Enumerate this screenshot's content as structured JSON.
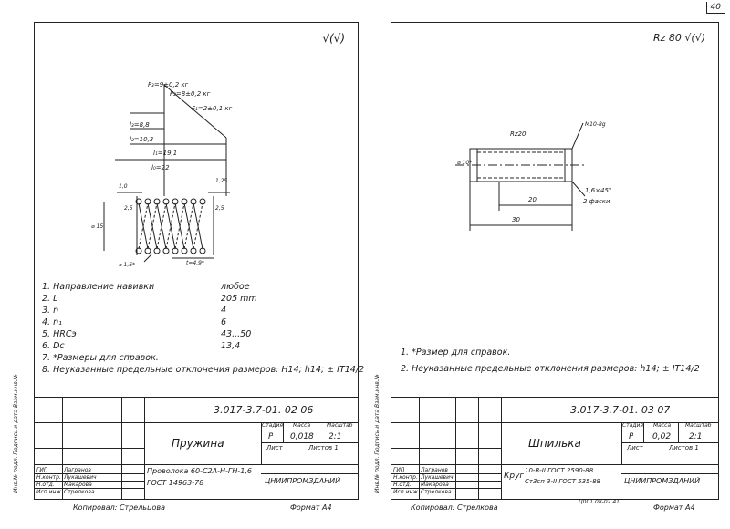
{
  "page_number": "40",
  "left": {
    "roughness_symbol": "√(√)",
    "forces": {
      "f3": "F₃=9±0,2 кг",
      "f2": "F₂=8±0,2 кг",
      "f1": "F₁=2±0,1 кг"
    },
    "dims": {
      "l3": "l₃=8,8",
      "l2": "l₂=10,3",
      "l1": "l₁=19,1",
      "l0": "l₀=22",
      "d1": "1,0",
      "d2": "1,25",
      "d3": "2,5",
      "d4": "2,5",
      "dia": "⌀ 15",
      "wire": "⌀ 1,6*",
      "pitch": "t=4,9*"
    },
    "spec_rows": [
      {
        "num": "1.",
        "label": "Направление навивки",
        "value": "любое"
      },
      {
        "num": "2.",
        "label": "L",
        "value": "205 mm"
      },
      {
        "num": "3.",
        "label": "n",
        "value": "4"
      },
      {
        "num": "4.",
        "label": "n₁",
        "value": "6"
      },
      {
        "num": "5.",
        "label": "HRCэ",
        "value": "43...50"
      },
      {
        "num": "6.",
        "label": "Dc",
        "value": "13,4"
      }
    ],
    "note7": "7. *Размеры для справок.",
    "note8": "8. Неуказанные предельные отклонения размеров: H14; h14; ± IT14/2",
    "title_block": {
      "designation": "3.017-3.7-01. 02 06",
      "name": "Пружина",
      "material_1": "Проволока 60-C2A-H-ГН-1,6",
      "material_2": "ГОСТ 14963-78",
      "stage_h": "Стадия",
      "mass_h": "Масса",
      "scale_h": "Масштаб",
      "stage": "Р",
      "mass": "0,018",
      "scale": "2:1",
      "sheet": "Лист",
      "sheets": "Листов 1",
      "org": "ЦНИИПРОМЗДАНИЙ",
      "roles": [
        "ГИП",
        "Н.контр.",
        "Н.отд.",
        "Исп.инж."
      ],
      "names": [
        "Лагранов",
        "Лукашевич",
        "Макарова",
        "Стрелкова"
      ],
      "side_label": "Инв.№ подл.  Подпись и дата  Взам.инв.№",
      "copied": "Копировал: Стрельцова",
      "format": "Формат А4"
    }
  },
  "right": {
    "roughness_symbol": "Rz 80 √(√)",
    "dims": {
      "rz": "Rz20",
      "thread": "M10-8g",
      "dia": "⌀ 10*",
      "chamfer": "1,6×45°",
      "chamfer_note": "2 фаски",
      "l20": "20",
      "l30": "30"
    },
    "note1": "1. *Размер для справок.",
    "note2": "2. Неуказанные предельные отклонения размеров: h14; ± IT14/2",
    "title_block": {
      "designation": "3.017-3.7-01. 03 07",
      "name": "Шпилька",
      "material_1": "10-В-II ГОСТ 2590-88",
      "material_2": "Ст3сп 3-II ГОСТ 535-88",
      "material_prefix": "Круг",
      "stage_h": "Стадия",
      "mass_h": "Масса",
      "scale_h": "Масштаб",
      "stage": "Р",
      "mass": "0,02",
      "scale": "2:1",
      "sheet": "Лист",
      "sheets": "Листов 1",
      "org": "ЦНИИПРОМЗДАНИЙ",
      "roles": [
        "ГИП",
        "Н.контр.",
        "Н.отд.",
        "Исп.инж."
      ],
      "names": [
        "Лагранов",
        "Лукашевич",
        "Макарова",
        "Стрелкова"
      ],
      "side_label": "Инв.№ подл.  Подпись и дата  Взам.инв.№",
      "copied": "Копировал: Стрелкова",
      "stamp": "Ц001 08-02  41",
      "format": "Формат А4"
    }
  }
}
